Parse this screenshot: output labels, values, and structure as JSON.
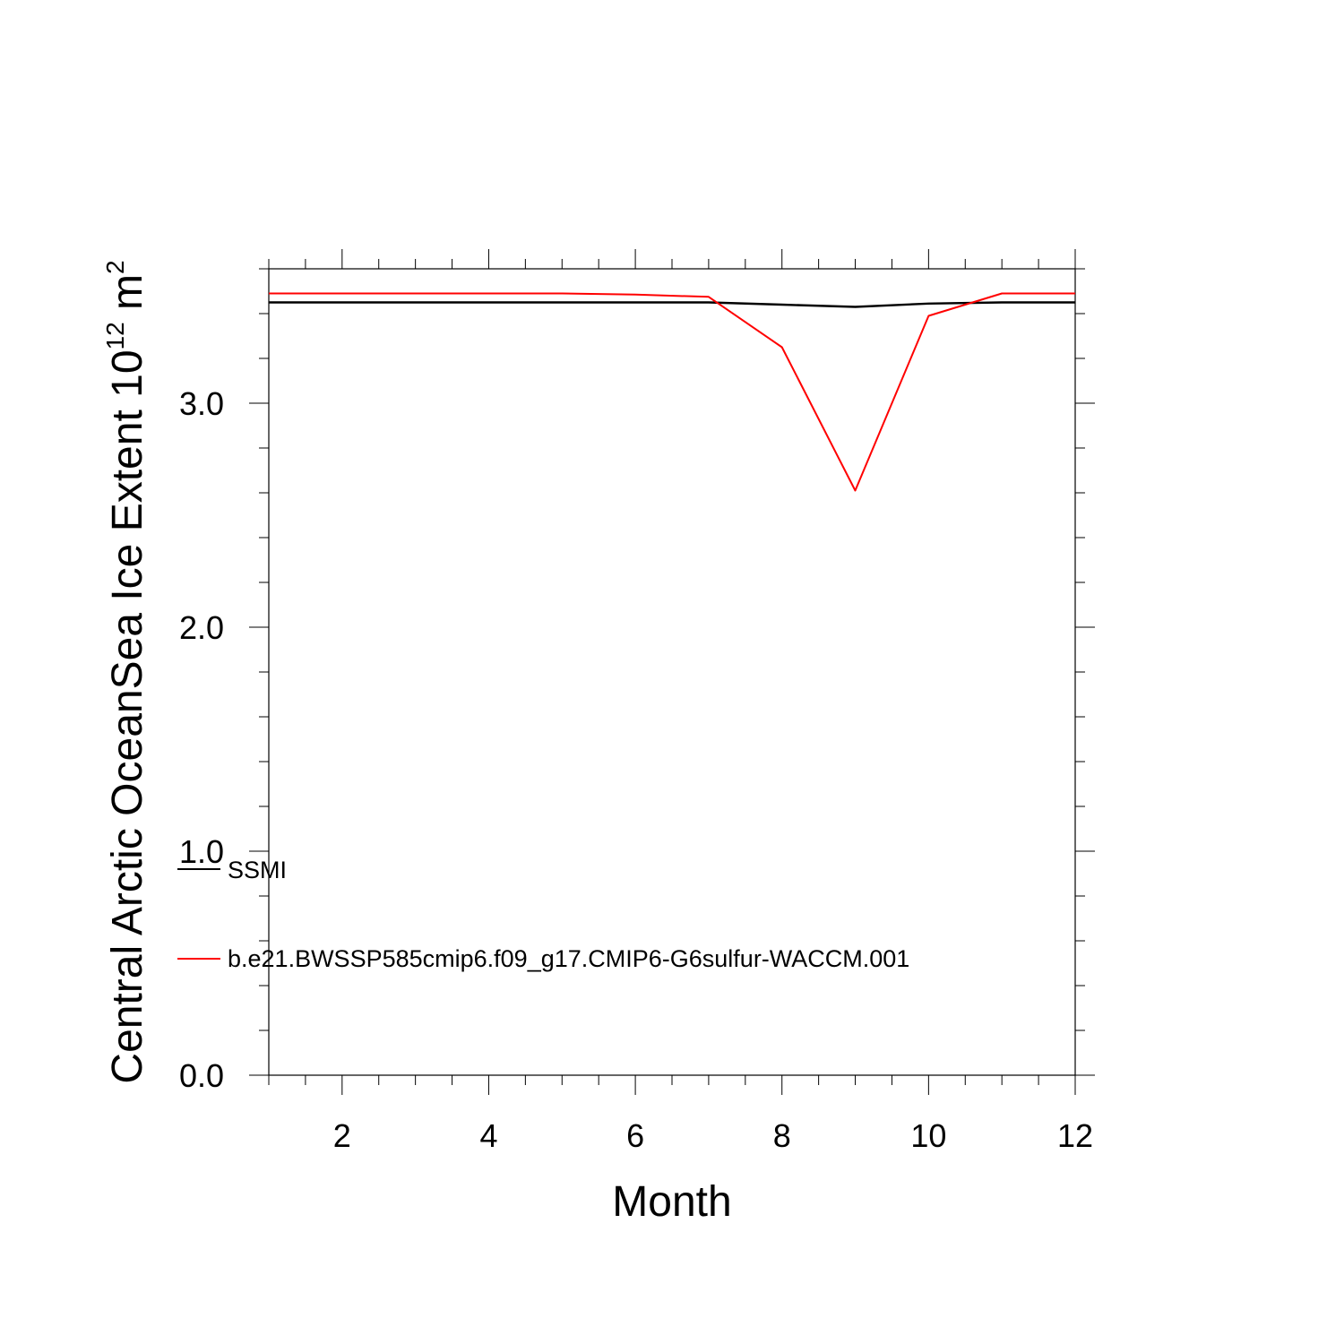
{
  "chart_data": {
    "type": "line",
    "xlabel": "Month",
    "ylabel": "Central Arctic OceanSea Ice Extent 10",
    "ylabel_exp": "12",
    "ylabel_unit": " m",
    "ylabel_unit_exp": "2",
    "xlim": [
      1,
      12
    ],
    "ylim": [
      0.0,
      3.6
    ],
    "xticks": [
      2,
      4,
      6,
      8,
      10,
      12
    ],
    "xtick_labels": [
      "2",
      "4",
      "6",
      "8",
      "10",
      "12"
    ],
    "yticks": [
      0.0,
      1.0,
      2.0,
      3.0
    ],
    "ytick_labels": [
      "0.0",
      "1.0",
      "2.0",
      "3.0"
    ],
    "x": [
      1,
      2,
      3,
      4,
      5,
      6,
      7,
      8,
      9,
      10,
      11,
      12
    ],
    "series": [
      {
        "name": "SSMI",
        "color": "#000000",
        "values": [
          3.45,
          3.45,
          3.45,
          3.45,
          3.45,
          3.45,
          3.45,
          3.44,
          3.43,
          3.445,
          3.45,
          3.45
        ]
      },
      {
        "name": "b.e21.BWSSP585cmip6.f09_g17.CMIP6-G6sulfur-WACCM.001",
        "color": "#ff0000",
        "values": [
          3.49,
          3.49,
          3.49,
          3.49,
          3.49,
          3.485,
          3.475,
          3.25,
          2.61,
          3.39,
          3.49,
          3.49
        ]
      }
    ],
    "grid": false,
    "legend_position": "lower-left"
  }
}
